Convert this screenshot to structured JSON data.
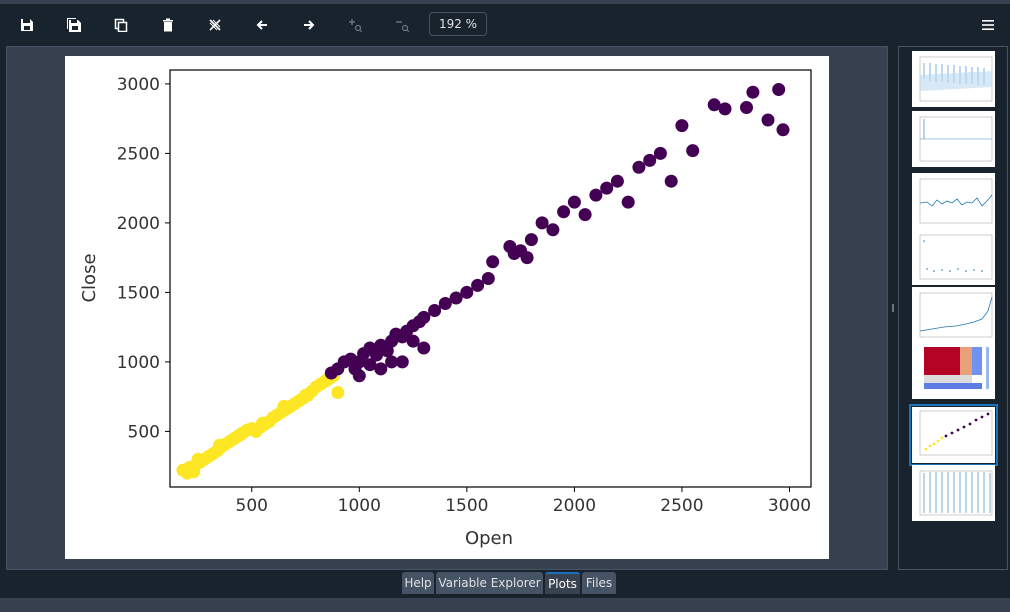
{
  "toolbar": {
    "buttons": [
      {
        "name": "save-icon",
        "title": "Save plot as..."
      },
      {
        "name": "save-all-icon",
        "title": "Save all plots"
      },
      {
        "name": "copy-icon",
        "title": "Copy plot to clipboard"
      },
      {
        "name": "trash-icon",
        "title": "Remove plot"
      },
      {
        "name": "remove-all-icon",
        "title": "Remove all plots"
      },
      {
        "name": "arrow-left-icon",
        "title": "Previous plot"
      },
      {
        "name": "arrow-right-icon",
        "title": "Next plot"
      },
      {
        "name": "zoom-in-icon",
        "title": "Zoom in"
      },
      {
        "name": "zoom-out-icon",
        "title": "Zoom out"
      }
    ],
    "zoom_value": "192 %",
    "menu_icon": "hamburger-menu-icon"
  },
  "tabs": [
    {
      "label": "Help"
    },
    {
      "label": "Variable Explorer"
    },
    {
      "label": "Plots",
      "active": true
    },
    {
      "label": "Files"
    }
  ],
  "thumbnails": [
    {
      "name": "autocorrelation"
    },
    {
      "name": "partial-autocorrelation"
    },
    {
      "name": "residuals-line"
    },
    {
      "name": "scatter-small"
    },
    {
      "name": "price-line"
    },
    {
      "name": "correlation-heatmap"
    },
    {
      "name": "open-close-scatter",
      "selected": true
    },
    {
      "name": "stem-plot"
    }
  ],
  "colors": {
    "accent": "#1a72bb",
    "cluster_high": "#440154",
    "cluster_low": "#fde725"
  },
  "chart_data": {
    "type": "scatter",
    "xlabel": "Open",
    "ylabel": "Close",
    "xlim": [
      120,
      3100
    ],
    "ylim": [
      100,
      3100
    ],
    "xticks": [
      500,
      1000,
      1500,
      2000,
      2500,
      3000
    ],
    "yticks": [
      500,
      1000,
      1500,
      2000,
      2500,
      3000
    ],
    "series": [
      {
        "color": "#fde725",
        "points": [
          [
            180,
            220
          ],
          [
            200,
            200
          ],
          [
            210,
            240
          ],
          [
            230,
            210
          ],
          [
            240,
            260
          ],
          [
            260,
            280
          ],
          [
            280,
            300
          ],
          [
            300,
            320
          ],
          [
            320,
            340
          ],
          [
            340,
            360
          ],
          [
            360,
            390
          ],
          [
            380,
            410
          ],
          [
            400,
            430
          ],
          [
            420,
            450
          ],
          [
            440,
            470
          ],
          [
            460,
            490
          ],
          [
            480,
            510
          ],
          [
            500,
            520
          ],
          [
            520,
            500
          ],
          [
            540,
            530
          ],
          [
            560,
            550
          ],
          [
            580,
            570
          ],
          [
            600,
            600
          ],
          [
            620,
            620
          ],
          [
            640,
            640
          ],
          [
            660,
            660
          ],
          [
            680,
            680
          ],
          [
            700,
            700
          ],
          [
            720,
            720
          ],
          [
            740,
            740
          ],
          [
            760,
            760
          ],
          [
            780,
            790
          ],
          [
            800,
            820
          ],
          [
            820,
            840
          ],
          [
            840,
            860
          ],
          [
            860,
            880
          ],
          [
            880,
            900
          ],
          [
            900,
            780
          ],
          [
            250,
            300
          ],
          [
            350,
            400
          ],
          [
            450,
            480
          ],
          [
            550,
            560
          ],
          [
            650,
            680
          ],
          [
            750,
            760
          ],
          [
            850,
            870
          ]
        ]
      },
      {
        "color": "#440154",
        "points": [
          [
            870,
            920
          ],
          [
            900,
            950
          ],
          [
            930,
            1000
          ],
          [
            960,
            1020
          ],
          [
            980,
            950
          ],
          [
            1000,
            1000
          ],
          [
            1020,
            1060
          ],
          [
            1050,
            1100
          ],
          [
            1080,
            1050
          ],
          [
            1100,
            1120
          ],
          [
            1130,
            1080
          ],
          [
            1150,
            1150
          ],
          [
            1170,
            1200
          ],
          [
            1200,
            1180
          ],
          [
            1220,
            1220
          ],
          [
            1250,
            1260
          ],
          [
            1280,
            1290
          ],
          [
            1300,
            1320
          ],
          [
            1350,
            1370
          ],
          [
            1400,
            1420
          ],
          [
            1450,
            1460
          ],
          [
            1500,
            1500
          ],
          [
            1550,
            1550
          ],
          [
            1600,
            1600
          ],
          [
            1620,
            1720
          ],
          [
            1700,
            1830
          ],
          [
            1720,
            1780
          ],
          [
            1750,
            1800
          ],
          [
            1780,
            1750
          ],
          [
            1800,
            1880
          ],
          [
            1850,
            2000
          ],
          [
            1900,
            1950
          ],
          [
            1950,
            2080
          ],
          [
            2000,
            2150
          ],
          [
            2050,
            2060
          ],
          [
            2100,
            2200
          ],
          [
            2150,
            2250
          ],
          [
            2200,
            2300
          ],
          [
            2250,
            2150
          ],
          [
            2300,
            2400
          ],
          [
            2350,
            2450
          ],
          [
            2400,
            2500
          ],
          [
            2450,
            2300
          ],
          [
            2500,
            2700
          ],
          [
            2550,
            2520
          ],
          [
            2650,
            2850
          ],
          [
            2700,
            2820
          ],
          [
            2800,
            2830
          ],
          [
            2830,
            2940
          ],
          [
            2900,
            2740
          ],
          [
            2950,
            2960
          ],
          [
            2970,
            2670
          ],
          [
            1000,
            900
          ],
          [
            1100,
            950
          ],
          [
            1200,
            1000
          ],
          [
            1300,
            1100
          ],
          [
            1150,
            1000
          ],
          [
            1250,
            1150
          ],
          [
            1050,
            980
          ]
        ]
      }
    ]
  }
}
